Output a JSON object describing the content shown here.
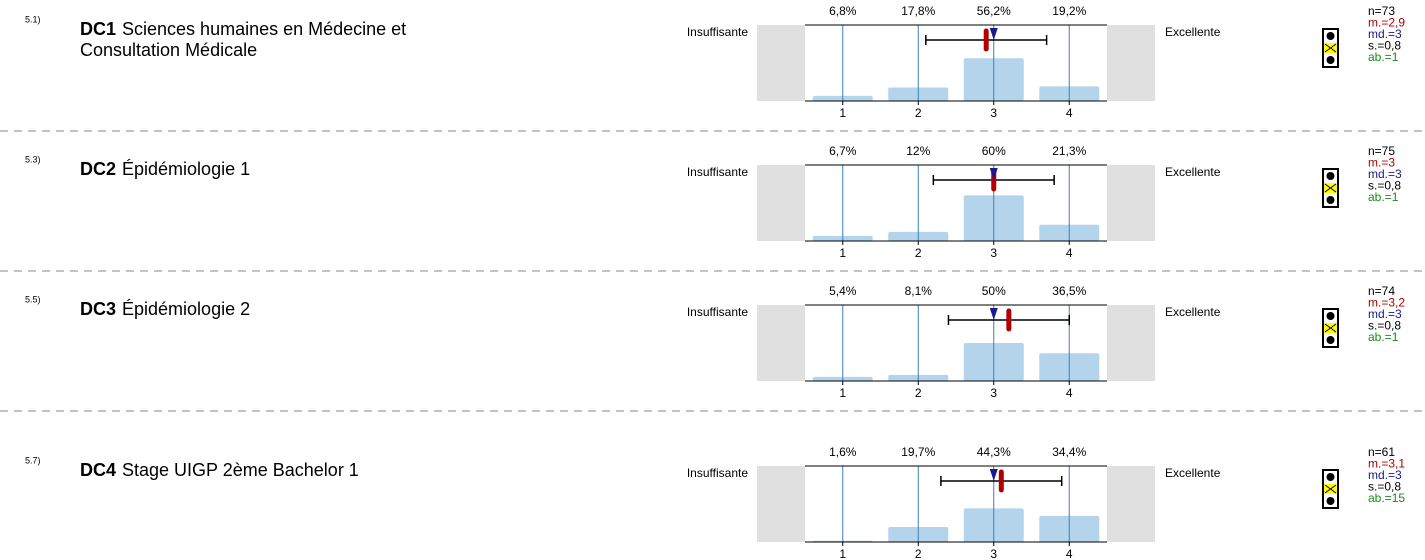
{
  "chart_data": [
    {
      "type": "bar",
      "number": "5.1)",
      "code": "DC1",
      "title": [
        "Sciences humaines en Médecine et",
        "Consultation Médicale"
      ],
      "categories": [
        "1",
        "2",
        "3",
        "4"
      ],
      "values": [
        6.8,
        17.8,
        56.2,
        19.2
      ],
      "value_labels": [
        "6,8%",
        "17,8%",
        "56,2%",
        "19,2%"
      ],
      "ylim": [
        0,
        100
      ],
      "xlim": [
        0.5,
        4.5
      ],
      "color": "#b4d4ec",
      "left_label": "Insuffisante",
      "right_label": "Excellente",
      "stats": {
        "n": {
          "value": 73,
          "label": "n=73"
        },
        "mean": {
          "value": 2.9,
          "label": "m.=2,9"
        },
        "median": {
          "value": 3,
          "label": "md.=3"
        },
        "sd": {
          "value": 0.8,
          "label": "s.=0,8"
        },
        "abstentions": {
          "value": 1,
          "label": "ab.=1"
        }
      }
    },
    {
      "type": "bar",
      "number": "5.3)",
      "code": "DC2",
      "title": [
        "Épidémiologie 1"
      ],
      "categories": [
        "1",
        "2",
        "3",
        "4"
      ],
      "values": [
        6.7,
        12,
        60,
        21.3
      ],
      "value_labels": [
        "6,7%",
        "12%",
        "60%",
        "21,3%"
      ],
      "ylim": [
        0,
        100
      ],
      "xlim": [
        0.5,
        4.5
      ],
      "color": "#b4d4ec",
      "left_label": "Insuffisante",
      "right_label": "Excellente",
      "stats": {
        "n": {
          "value": 75,
          "label": "n=75"
        },
        "mean": {
          "value": 3,
          "label": "m.=3"
        },
        "median": {
          "value": 3,
          "label": "md.=3"
        },
        "sd": {
          "value": 0.8,
          "label": "s.=0,8"
        },
        "abstentions": {
          "value": 1,
          "label": "ab.=1"
        }
      }
    },
    {
      "type": "bar",
      "number": "5.5)",
      "code": "DC3",
      "title": [
        "Épidémiologie 2"
      ],
      "categories": [
        "1",
        "2",
        "3",
        "4"
      ],
      "values": [
        5.4,
        8.1,
        50,
        36.5
      ],
      "value_labels": [
        "5,4%",
        "8,1%",
        "50%",
        "36,5%"
      ],
      "ylim": [
        0,
        100
      ],
      "xlim": [
        0.5,
        4.5
      ],
      "color": "#b4d4ec",
      "left_label": "Insuffisante",
      "right_label": "Excellente",
      "stats": {
        "n": {
          "value": 74,
          "label": "n=74"
        },
        "mean": {
          "value": 3.2,
          "label": "m.=3,2"
        },
        "median": {
          "value": 3,
          "label": "md.=3"
        },
        "sd": {
          "value": 0.8,
          "label": "s.=0,8"
        },
        "abstentions": {
          "value": 1,
          "label": "ab.=1"
        }
      }
    },
    {
      "type": "bar",
      "number": "5.7)",
      "code": "DC4",
      "title": [
        "Stage UIGP 2ème Bachelor 1"
      ],
      "categories": [
        "1",
        "2",
        "3",
        "4"
      ],
      "values": [
        1.6,
        19.7,
        44.3,
        34.4
      ],
      "value_labels": [
        "1,6%",
        "19,7%",
        "44,3%",
        "34,4%"
      ],
      "ylim": [
        0,
        100
      ],
      "xlim": [
        0.5,
        4.5
      ],
      "color": "#b4d4ec",
      "left_label": "Insuffisante",
      "right_label": "Excellente",
      "stats": {
        "n": {
          "value": 61,
          "label": "n=61"
        },
        "mean": {
          "value": 3.1,
          "label": "m.=3,1"
        },
        "median": {
          "value": 3,
          "label": "md.=3"
        },
        "sd": {
          "value": 0.8,
          "label": "s.=0,8"
        },
        "abstentions": {
          "value": 15,
          "label": "ab.=15"
        }
      }
    }
  ]
}
